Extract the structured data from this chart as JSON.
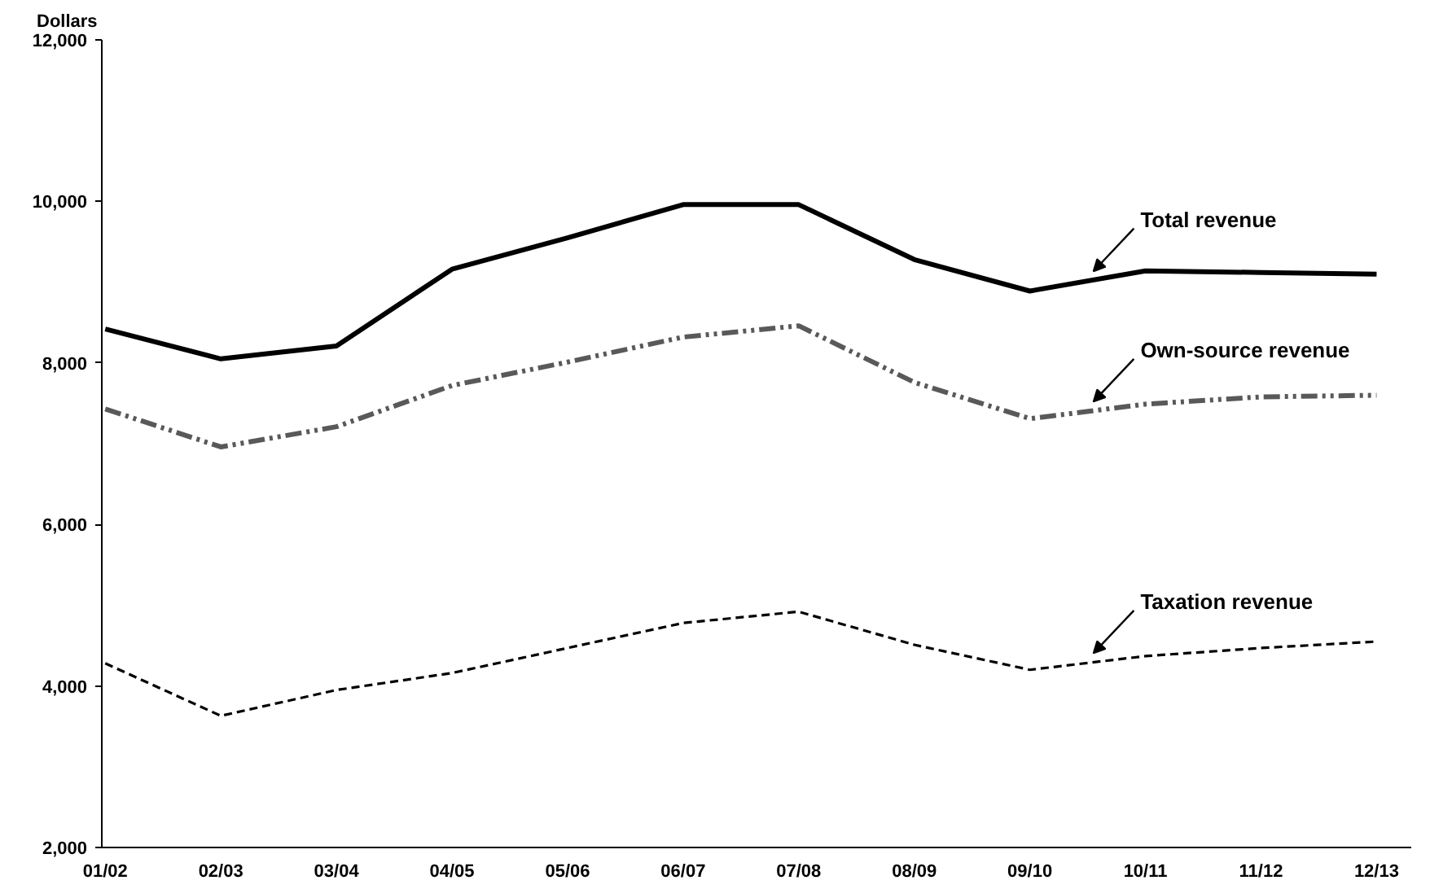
{
  "chart_data": {
    "type": "line",
    "ylabel": "Dollars",
    "categories": [
      "01/02",
      "02/03",
      "03/04",
      "04/05",
      "05/06",
      "06/07",
      "07/08",
      "08/09",
      "09/10",
      "10/11",
      "11/12",
      "12/13"
    ],
    "ylim": [
      2000,
      12000
    ],
    "yticks": [
      {
        "value": 2000,
        "label": "2,000"
      },
      {
        "value": 4000,
        "label": "4,000"
      },
      {
        "value": 6000,
        "label": "6,000"
      },
      {
        "value": 8000,
        "label": "8,000"
      },
      {
        "value": 10000,
        "label": "10,000"
      },
      {
        "value": 12000,
        "label": "12,000"
      }
    ],
    "grid": false,
    "marker": "none",
    "series": [
      {
        "name": "Total revenue",
        "color": "#000000",
        "line_style": "solid",
        "values": [
          8420,
          8050,
          8210,
          9160,
          9550,
          9960,
          9960,
          9280,
          8890,
          9140,
          9120,
          9100
        ]
      },
      {
        "name": "Own-source revenue",
        "color": "#595959",
        "line_style": "dashdotdot",
        "values": [
          7430,
          6960,
          7210,
          7720,
          8010,
          8320,
          8460,
          7760,
          7310,
          7490,
          7580,
          7600
        ]
      },
      {
        "name": "Taxation revenue",
        "color": "#000000",
        "line_style": "dashed",
        "values": [
          4280,
          3630,
          3950,
          4160,
          4470,
          4780,
          4920,
          4510,
          4200,
          4370,
          4470,
          4550
        ]
      }
    ]
  }
}
